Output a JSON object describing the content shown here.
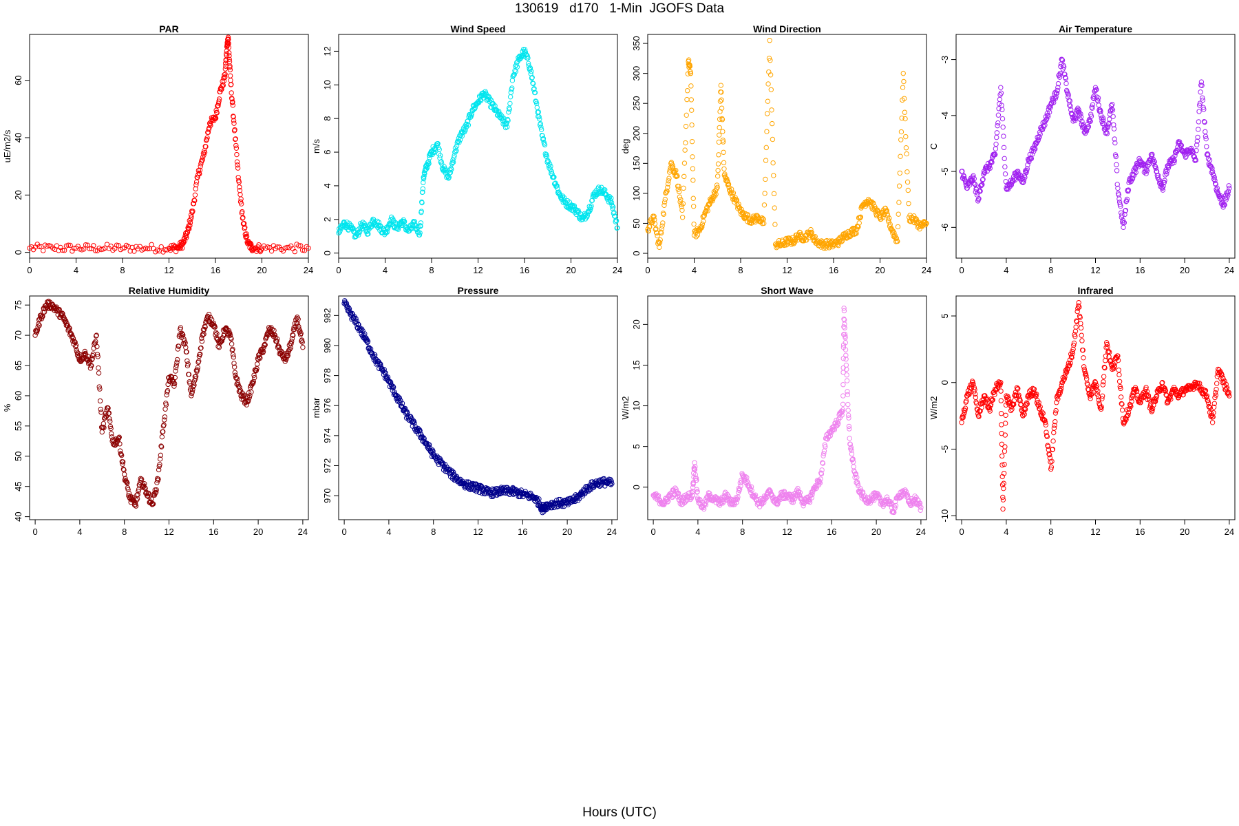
{
  "title": "130619   d170   1-Min  JGOFS Data",
  "xlabel": "Hours (UTC)",
  "chart_data": [
    {
      "type": "scatter",
      "title": "PAR",
      "ylabel": "uE/m2/s",
      "color": "#FF0000",
      "xlim": [
        0,
        24
      ],
      "ylim": [
        -2,
        76
      ],
      "xticks": [
        0,
        4,
        8,
        12,
        16,
        20,
        24
      ],
      "yticks": [
        0,
        20,
        40,
        60
      ],
      "x": [
        0,
        2,
        4,
        6,
        8,
        10,
        12,
        12.8,
        13.2,
        13.6,
        14,
        14.5,
        15,
        15.5,
        16,
        16.4,
        16.8,
        17.0,
        17.1,
        17.3,
        17.6,
        18,
        18.4,
        18.8,
        19.2,
        20,
        22,
        24
      ],
      "y": [
        1.5,
        1.5,
        1.5,
        1.5,
        1.5,
        1.5,
        1.5,
        1.6,
        3,
        7,
        14,
        27,
        34,
        45,
        47,
        56,
        61,
        72,
        75,
        60,
        45,
        25,
        10,
        3,
        1.6,
        1.5,
        1.5,
        1.5
      ]
    },
    {
      "type": "scatter",
      "title": "Wind Speed",
      "ylabel": "m/s",
      "color": "#00E5EE",
      "xlim": [
        0,
        24
      ],
      "ylim": [
        -0.3,
        13
      ],
      "xticks": [
        0,
        4,
        8,
        12,
        16,
        20,
        24
      ],
      "yticks": [
        0,
        2,
        4,
        6,
        8,
        10,
        12
      ],
      "x": [
        0,
        0.5,
        1,
        1.5,
        2,
        2.5,
        3,
        3.5,
        4,
        4.5,
        5,
        5.5,
        6,
        6.5,
        7,
        7.3,
        7.6,
        8,
        8.5,
        9,
        9.5,
        10,
        10.5,
        11,
        11.5,
        12,
        12.5,
        13,
        13.5,
        14,
        14.5,
        15,
        15.5,
        16,
        16.5,
        17,
        17.5,
        18,
        18.5,
        19,
        19.5,
        20,
        20.5,
        21,
        21.5,
        22,
        22.5,
        23,
        23.5,
        24
      ],
      "y": [
        1.2,
        1.8,
        1.5,
        1.0,
        1.7,
        1.3,
        2.0,
        1.6,
        1.2,
        2.0,
        1.5,
        1.9,
        1.3,
        1.7,
        1.2,
        4.5,
        5.2,
        6.0,
        6.5,
        5.0,
        4.5,
        6.0,
        7.0,
        7.5,
        8.5,
        9.0,
        9.5,
        9.0,
        8.5,
        8.0,
        7.5,
        10.5,
        11.5,
        12.0,
        11.0,
        9.0,
        7.0,
        5.5,
        4.5,
        3.5,
        3.0,
        2.8,
        2.5,
        2.0,
        2.5,
        3.5,
        3.8,
        3.5,
        3.0,
        1.5
      ]
    },
    {
      "type": "scatter",
      "title": "Wind Direction",
      "ylabel": "deg",
      "color": "#FFA500",
      "xlim": [
        0,
        24
      ],
      "ylim": [
        -8,
        365
      ],
      "xticks": [
        0,
        4,
        8,
        12,
        16,
        20,
        24
      ],
      "yticks": [
        0,
        50,
        100,
        150,
        200,
        250,
        300,
        350
      ],
      "x": [
        0,
        0.5,
        1,
        1.5,
        2,
        2.5,
        3,
        3.5,
        3.7,
        4,
        4.5,
        5,
        5.5,
        6,
        6.3,
        6.6,
        7,
        7.5,
        8,
        8.5,
        9,
        9.5,
        10,
        10.5,
        11,
        11.5,
        12,
        12.5,
        13,
        13.5,
        14,
        14.5,
        15,
        15.5,
        16,
        16.5,
        17,
        17.5,
        18,
        18.5,
        19,
        19.5,
        20,
        20.5,
        21,
        21.5,
        22,
        22.5,
        23,
        23.5,
        24
      ],
      "y": [
        40,
        60,
        10,
        90,
        150,
        130,
        60,
        320,
        300,
        30,
        40,
        70,
        90,
        110,
        280,
        130,
        110,
        90,
        70,
        60,
        55,
        60,
        50,
        355,
        15,
        15,
        20,
        20,
        30,
        25,
        35,
        20,
        15,
        15,
        15,
        20,
        30,
        35,
        40,
        80,
        90,
        75,
        60,
        70,
        40,
        20,
        300,
        60,
        55,
        45,
        50
      ]
    },
    {
      "type": "scatter",
      "title": "Air Temperature",
      "ylabel": "C",
      "color": "#A020F0",
      "xlim": [
        -0.5,
        24.5
      ],
      "ylim": [
        -6.55,
        -2.55
      ],
      "xticks": [
        0,
        4,
        8,
        12,
        16,
        20,
        24
      ],
      "yticks": [
        -6,
        -5,
        -4,
        -3
      ],
      "x": [
        0,
        0.5,
        1,
        1.5,
        2,
        2.5,
        3,
        3.5,
        4,
        4.5,
        5,
        5.5,
        6,
        6.5,
        7,
        7.5,
        8,
        8.5,
        9,
        9.5,
        10,
        10.5,
        11,
        11.5,
        12,
        12.5,
        13,
        13.5,
        14,
        14.5,
        15,
        15.5,
        16,
        16.5,
        17,
        17.5,
        18,
        18.5,
        19,
        19.5,
        20,
        20.5,
        21,
        21.5,
        22,
        22.5,
        23,
        23.5,
        24
      ],
      "y": [
        -5.0,
        -5.3,
        -5.1,
        -5.5,
        -5.0,
        -4.9,
        -4.7,
        -3.5,
        -5.3,
        -5.2,
        -5.0,
        -5.2,
        -4.8,
        -4.6,
        -4.3,
        -4.1,
        -3.8,
        -3.6,
        -3.0,
        -3.6,
        -4.1,
        -3.9,
        -4.3,
        -4.1,
        -3.5,
        -4.0,
        -4.3,
        -3.8,
        -5.3,
        -6.0,
        -5.2,
        -5.0,
        -4.8,
        -5.0,
        -4.7,
        -5.0,
        -5.3,
        -4.9,
        -4.8,
        -4.5,
        -4.7,
        -4.6,
        -4.8,
        -3.4,
        -4.7,
        -5.0,
        -5.4,
        -5.6,
        -5.3
      ]
    },
    {
      "type": "scatter",
      "title": "Relative Humidity",
      "ylabel": "%",
      "color": "#8B0000",
      "xlim": [
        -0.5,
        24.5
      ],
      "ylim": [
        39.5,
        76.5
      ],
      "xticks": [
        0,
        4,
        8,
        12,
        16,
        20,
        24
      ],
      "yticks": [
        40,
        45,
        50,
        55,
        60,
        65,
        70,
        75
      ],
      "x": [
        0,
        0.5,
        1,
        1.5,
        2,
        2.5,
        3,
        3.5,
        4,
        4.5,
        5,
        5.5,
        6,
        6.5,
        7,
        7.5,
        8,
        8.5,
        9,
        9.5,
        10,
        10.5,
        11,
        11.5,
        12,
        12.5,
        13,
        13.5,
        14,
        14.5,
        15,
        15.5,
        16,
        16.5,
        17,
        17.5,
        18,
        18.5,
        19,
        19.5,
        20,
        20.5,
        21,
        21.5,
        22,
        22.5,
        23,
        23.5,
        24
      ],
      "y": [
        70,
        73,
        75,
        75,
        74,
        73,
        71,
        69,
        66,
        67,
        65,
        70,
        54,
        58,
        52,
        53,
        47,
        43,
        42,
        46,
        44,
        42,
        46,
        55,
        63,
        62,
        71,
        68,
        60,
        64,
        70,
        73,
        72,
        68,
        71,
        70,
        63,
        60,
        59,
        62,
        66,
        68,
        71,
        70,
        67,
        66,
        69,
        73,
        68
      ]
    },
    {
      "type": "scatter",
      "title": "Pressure",
      "ylabel": "mbar",
      "color": "#00008B",
      "xlim": [
        -0.5,
        24.5
      ],
      "ylim": [
        968.4,
        983.3
      ],
      "xticks": [
        0,
        4,
        8,
        12,
        16,
        20,
        24
      ],
      "yticks": [
        970,
        972,
        974,
        976,
        978,
        980,
        982
      ],
      "x": [
        0,
        0.5,
        1,
        1.5,
        2,
        2.5,
        3,
        3.5,
        4,
        4.5,
        5,
        5.5,
        6,
        6.5,
        7,
        7.5,
        8,
        8.5,
        9,
        9.5,
        10,
        10.5,
        11,
        11.5,
        12,
        12.5,
        13,
        13.5,
        14,
        14.5,
        15,
        15.5,
        16,
        16.5,
        17,
        17.5,
        17.8,
        18,
        18.5,
        19,
        19.5,
        20,
        20.5,
        21,
        21.5,
        22,
        22.5,
        23,
        23.5,
        24
      ],
      "y": [
        982.8,
        982.2,
        981.6,
        981.0,
        980.3,
        979.5,
        978.8,
        978.3,
        977.6,
        976.9,
        976.2,
        975.5,
        975.0,
        974.4,
        973.9,
        973.3,
        972.7,
        972.3,
        971.9,
        971.5,
        971.2,
        970.9,
        970.7,
        970.6,
        970.5,
        970.35,
        970.2,
        970.2,
        970.3,
        970.3,
        970.3,
        970.2,
        970.1,
        970.0,
        969.9,
        969.5,
        969.1,
        969.3,
        969.4,
        969.5,
        969.5,
        969.5,
        969.7,
        969.9,
        970.3,
        970.6,
        970.8,
        970.9,
        970.9,
        970.8
      ]
    },
    {
      "type": "scatter",
      "title": "Short Wave",
      "ylabel": "W/m2",
      "color": "#EE82EE",
      "xlim": [
        -0.5,
        24.5
      ],
      "ylim": [
        -4,
        23.5
      ],
      "xticks": [
        0,
        4,
        8,
        12,
        16,
        20,
        24
      ],
      "yticks": [
        0,
        5,
        10,
        15,
        20
      ],
      "x": [
        0,
        0.5,
        1,
        1.5,
        2,
        2.5,
        3,
        3.5,
        3.7,
        4,
        4.5,
        5,
        5.5,
        6,
        6.5,
        7,
        7.5,
        8,
        8.5,
        9,
        9.5,
        10,
        10.5,
        11,
        11.5,
        12,
        12.5,
        13,
        13.5,
        14,
        14.5,
        15,
        15.5,
        16,
        16.5,
        17,
        17.1,
        17.3,
        17.6,
        18,
        18.5,
        19,
        19.5,
        20,
        20.5,
        21,
        21.5,
        22,
        22.5,
        23,
        23.5,
        24
      ],
      "y": [
        -1.0,
        -1.5,
        -2.0,
        -1.0,
        -0.5,
        -1.8,
        -1.2,
        -1.0,
        3.0,
        -1.5,
        -2.5,
        -1.0,
        -1.5,
        -2.0,
        -1.0,
        -2.0,
        -1.5,
        1.5,
        0.5,
        -1.0,
        -2.0,
        -1.5,
        -0.5,
        -2.0,
        -1.0,
        -1.0,
        -1.5,
        -0.5,
        -2.0,
        -1.5,
        0,
        1,
        6,
        7,
        8,
        9.5,
        22,
        15,
        6,
        2,
        -0.5,
        -1.5,
        -1.5,
        -1.0,
        -2.0,
        -1.5,
        -3.0,
        -1.0,
        -0.5,
        -2.0,
        -1.5,
        -2.5
      ]
    },
    {
      "type": "scatter",
      "title": "Infrared",
      "ylabel": "W/m2",
      "color": "#FF0000",
      "xlim": [
        -0.5,
        24.5
      ],
      "ylim": [
        -10.3,
        6.5
      ],
      "xticks": [
        0,
        4,
        8,
        12,
        16,
        20,
        24
      ],
      "yticks": [
        -10,
        -5,
        0,
        5
      ],
      "x": [
        0,
        0.5,
        1,
        1.5,
        2,
        2.5,
        3,
        3.5,
        3.7,
        4,
        4.5,
        5,
        5.5,
        6,
        6.5,
        7,
        7.5,
        8,
        8.5,
        9,
        9.5,
        10,
        10.5,
        11,
        11.5,
        12,
        12.5,
        13,
        13.5,
        14,
        14.5,
        15,
        15.5,
        16,
        16.5,
        17,
        17.5,
        18,
        18.5,
        19,
        19.5,
        20,
        20.5,
        21,
        21.5,
        22,
        22.5,
        23,
        23.5,
        24
      ],
      "y": [
        -3.0,
        -1.0,
        0,
        -2.5,
        -1.0,
        -2.0,
        -0.5,
        0,
        -9.5,
        -1.0,
        -2.0,
        -0.5,
        -2.5,
        -1.0,
        -0.5,
        -2.0,
        -3.0,
        -6.5,
        -1.5,
        0,
        1.0,
        2.5,
        6.0,
        1.0,
        -1.0,
        0,
        -2.0,
        3.0,
        1.0,
        2.0,
        -3.0,
        -2.0,
        -0.5,
        -1.5,
        -0.5,
        -2.0,
        -1.0,
        0,
        -1.5,
        -0.5,
        -1.0,
        -0.5,
        -0.5,
        0,
        -0.5,
        -1.0,
        -3.0,
        1.0,
        0,
        -1.0
      ]
    }
  ]
}
